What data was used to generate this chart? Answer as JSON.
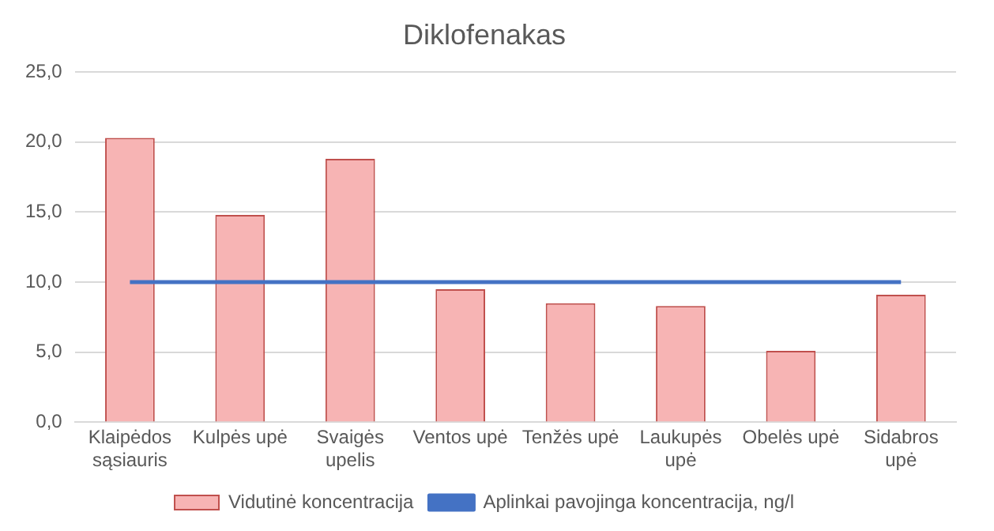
{
  "chart_data": {
    "type": "bar",
    "title": "Diklofenakas",
    "categories": [
      "Klaipėdos sąsiauris",
      "Kulpės upė",
      "Svaigės upelis",
      "Ventos upė",
      "Tenžės upė",
      "Laukupės upė",
      "Obelės upė",
      "Sidabros upė"
    ],
    "series": [
      {
        "name": "Vidutinė koncentracija",
        "color": "#f7b4b4",
        "values": [
          20.3,
          14.8,
          18.8,
          9.5,
          8.5,
          8.3,
          5.1,
          9.1
        ]
      },
      {
        "name": "Aplinkai pavojinga koncentracija, ng/l",
        "type": "line",
        "color": "#4472c4",
        "values": [
          10,
          10,
          10,
          10,
          10,
          10,
          10,
          10
        ]
      }
    ],
    "ylim": [
      0,
      25
    ],
    "yticks": [
      {
        "value": 0,
        "label": "0,0"
      },
      {
        "value": 5,
        "label": "5,0"
      },
      {
        "value": 10,
        "label": "10,0"
      },
      {
        "value": 15,
        "label": "15,0"
      },
      {
        "value": 20,
        "label": "20,0"
      },
      {
        "value": 25,
        "label": "25,0"
      }
    ],
    "grid": "y",
    "legend": "bottom",
    "marker": "none"
  }
}
